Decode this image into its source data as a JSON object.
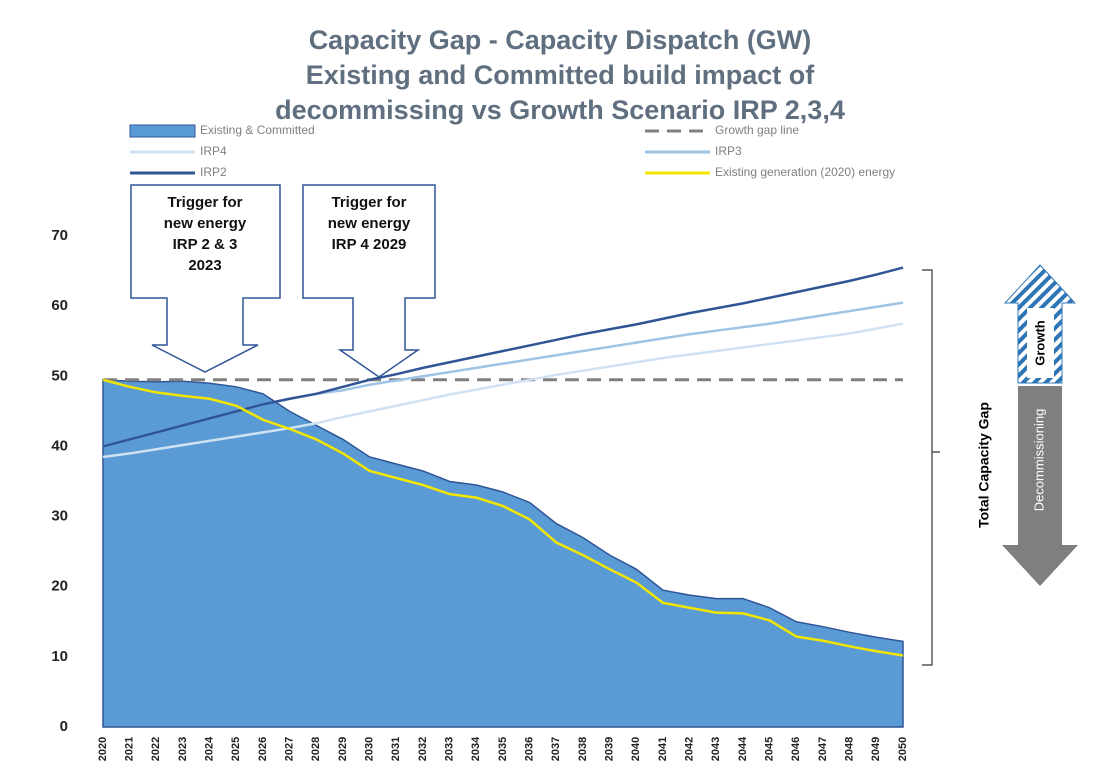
{
  "chart_data": {
    "type": "area-line",
    "title": [
      "Capacity Gap - Capacity Dispatch (GW)",
      "Existing and Committed build impact of",
      "decommissing vs Growth Scenario IRP 2,3,4"
    ],
    "x": [
      2020,
      2021,
      2022,
      2023,
      2024,
      2025,
      2026,
      2027,
      2028,
      2029,
      2030,
      2031,
      2032,
      2033,
      2034,
      2035,
      2036,
      2037,
      2038,
      2039,
      2040,
      2041,
      2042,
      2043,
      2044,
      2045,
      2046,
      2047,
      2048,
      2049,
      2050
    ],
    "xlim": [
      2020,
      2050
    ],
    "ylim": [
      0,
      70
    ],
    "yticks": [
      0,
      10,
      20,
      30,
      40,
      50,
      60,
      70
    ],
    "series": [
      {
        "name": "Existing & Committed",
        "kind": "area",
        "color": "#5b9bd5",
        "values": [
          49.5,
          49.3,
          49.2,
          49.3,
          49,
          48.5,
          47.5,
          45,
          43,
          41,
          38.5,
          37.5,
          36.5,
          35,
          34.5,
          33.5,
          32,
          29,
          27,
          24.5,
          22.5,
          19.5,
          18.8,
          18.3,
          18.3,
          17,
          15,
          14.3,
          13.5,
          12.8,
          12.2
        ]
      },
      {
        "name": "Growth gap line",
        "kind": "dashed",
        "color": "#808080",
        "values": [
          49.5,
          49.5,
          49.5,
          49.5,
          49.5,
          49.5,
          49.5,
          49.5,
          49.5,
          49.5,
          49.5,
          49.5,
          49.5,
          49.5,
          49.5,
          49.5,
          49.5,
          49.5,
          49.5,
          49.5,
          49.5,
          49.5,
          49.5,
          49.5,
          49.5,
          49.5,
          49.5,
          49.5,
          49.5,
          49.5,
          49.5
        ]
      },
      {
        "name": "IRP4",
        "kind": "line",
        "color": "#cfe2f3",
        "values": [
          38.5,
          39,
          39.6,
          40.2,
          40.8,
          41.4,
          42,
          42.6,
          43.3,
          44.2,
          45,
          45.8,
          46.6,
          47.4,
          48.1,
          48.8,
          49.5,
          50.2,
          50.8,
          51.4,
          52,
          52.6,
          53.1,
          53.6,
          54.1,
          54.6,
          55.1,
          55.6,
          56.1,
          56.8,
          57.5
        ]
      },
      {
        "name": "IRP3",
        "kind": "line",
        "color": "#9dc3e6",
        "values": [
          40,
          41,
          42,
          43,
          44,
          45,
          46,
          46.8,
          47.5,
          48,
          48.8,
          49.4,
          50,
          50.6,
          51.2,
          51.8,
          52.4,
          53,
          53.6,
          54.2,
          54.8,
          55.4,
          56,
          56.5,
          57,
          57.5,
          58.1,
          58.7,
          59.3,
          59.9,
          60.5
        ]
      },
      {
        "name": "IRP2",
        "kind": "line",
        "color": "#2f5597",
        "values": [
          40,
          41,
          42,
          43,
          44,
          45,
          46,
          46.8,
          47.5,
          48.5,
          49.5,
          50.3,
          51.2,
          52,
          52.8,
          53.6,
          54.4,
          55.2,
          56,
          56.7,
          57.4,
          58.2,
          59,
          59.7,
          60.4,
          61.2,
          62,
          62.8,
          63.6,
          64.5,
          65.5
        ]
      },
      {
        "name": "Existing generation (2020) energy",
        "kind": "line",
        "color": "#f2e600",
        "values": [
          49.5,
          48.5,
          47.7,
          47.2,
          46.8,
          45.8,
          43.8,
          42.5,
          41,
          39,
          36.5,
          35.5,
          34.5,
          33.2,
          32.7,
          31.5,
          29.6,
          26.3,
          24.5,
          22.5,
          20.6,
          17.7,
          17,
          16.3,
          16.2,
          15.2,
          12.9,
          12.3,
          11.5,
          10.8,
          10.2
        ]
      }
    ],
    "annotations": [
      {
        "lines": [
          "Trigger for",
          "new energy",
          "IRP 2 & 3",
          "2023"
        ]
      },
      {
        "lines": [
          "Trigger for",
          "new energy",
          "IRP 4 2029"
        ]
      }
    ],
    "gap_label": "Total Capacity Gap",
    "growth_label": "Growth",
    "decommissioning_label": "Decommissioning"
  }
}
